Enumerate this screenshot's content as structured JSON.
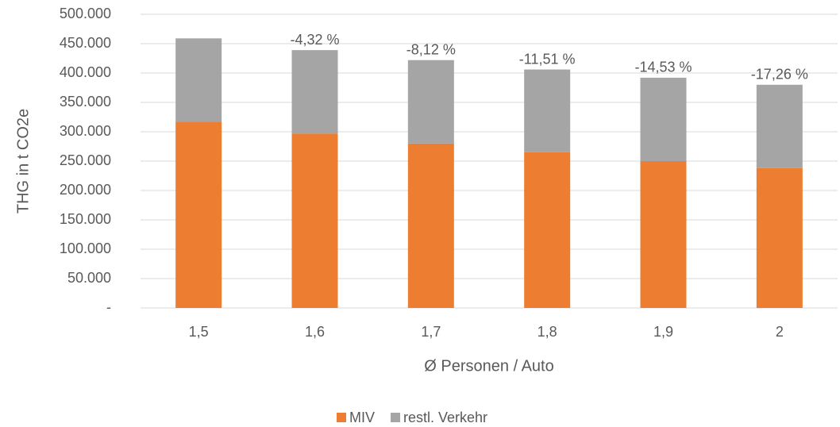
{
  "chart_data": {
    "type": "stacked_bar",
    "categories": [
      "1,5",
      "1,6",
      "1,7",
      "1,8",
      "1,9",
      "2"
    ],
    "series": [
      {
        "name": "MIV",
        "color": "#ed7d31",
        "values": [
          317000,
          297000,
          280000,
          265000,
          250000,
          238000
        ]
      },
      {
        "name": "restl. Verkehr",
        "color": "#a5a5a5",
        "values": [
          142000,
          142000,
          142000,
          141000,
          142000,
          142000
        ]
      }
    ],
    "change_labels": [
      null,
      "-4,32 %",
      "-8,12 %",
      "-11,51 %",
      "-14,53 %",
      "-17,26 %"
    ],
    "xlabel": "Ø Personen / Auto",
    "ylabel": "THG in t CO2e",
    "ylim": [
      0,
      500000
    ],
    "yticks": [
      {
        "value": 0,
        "label": "-"
      },
      {
        "value": 50000,
        "label": "50.000"
      },
      {
        "value": 100000,
        "label": "100.000"
      },
      {
        "value": 150000,
        "label": "150.000"
      },
      {
        "value": 200000,
        "label": "200.000"
      },
      {
        "value": 250000,
        "label": "250.000"
      },
      {
        "value": 300000,
        "label": "300.000"
      },
      {
        "value": 350000,
        "label": "350.000"
      },
      {
        "value": 400000,
        "label": "400.000"
      },
      {
        "value": 450000,
        "label": "450.000"
      },
      {
        "value": 500000,
        "label": "500.000"
      }
    ],
    "grid": true,
    "legend": "bottom"
  }
}
